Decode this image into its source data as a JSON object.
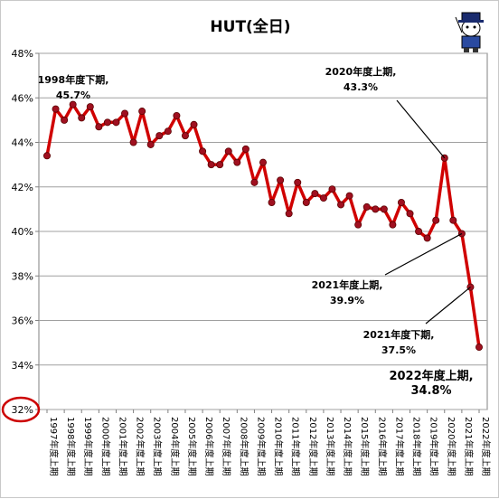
{
  "chart_data": {
    "type": "line",
    "title": "HUT(全日)",
    "y_ticks": [
      "48%",
      "46%",
      "44%",
      "42%",
      "40%",
      "38%",
      "36%",
      "34%",
      "32%"
    ],
    "ylim": [
      32,
      48
    ],
    "y_step": 2,
    "x_labels": [
      "1997年度上期",
      "1998年度上期",
      "1999年度上期",
      "2000年度上期",
      "2001年度上期",
      "2002年度上期",
      "2003年度上期",
      "2004年度上期",
      "2005年度上期",
      "2006年度上期",
      "2007年度上期",
      "2008年度上期",
      "2009年度上期",
      "2010年度上期",
      "2011年度上期",
      "2012年度上期",
      "2013年度上期",
      "2014年度上期",
      "2015年度上期",
      "2016年度上期",
      "2017年度上期",
      "2018年度上期",
      "2019年度上期",
      "2020年度上期",
      "2021年度上期",
      "2022年度上期"
    ],
    "values": [
      43.4,
      45.5,
      45.0,
      45.7,
      45.1,
      45.6,
      44.7,
      44.9,
      44.9,
      45.3,
      44.0,
      45.4,
      43.9,
      44.3,
      44.5,
      45.2,
      44.3,
      44.8,
      43.6,
      43.0,
      43.0,
      43.6,
      43.1,
      43.7,
      42.2,
      43.1,
      41.3,
      42.3,
      40.8,
      42.2,
      41.3,
      41.7,
      41.5,
      41.9,
      41.2,
      41.6,
      40.3,
      41.1,
      41.0,
      41.0,
      40.3,
      41.3,
      40.8,
      40.0,
      39.7,
      40.5,
      43.3,
      40.5,
      39.9,
      37.5,
      34.8
    ],
    "grid": true,
    "line_color": "#d00000",
    "marker_color": "#a01020",
    "highlight_color": "#cc0000",
    "annotations": [
      {
        "index": 3,
        "line1": "1998年度下期,",
        "line2": "45.7%",
        "style": "normal"
      },
      {
        "index": 46,
        "line1": "2020年度上期,",
        "line2": "43.3%",
        "style": "normal"
      },
      {
        "index": 48,
        "line1": "2021年度上期,",
        "line2": "39.9%",
        "style": "normal"
      },
      {
        "index": 49,
        "line1": "2021年度下期,",
        "line2": "37.5%",
        "style": "normal"
      },
      {
        "index": 50,
        "line1": "2022年度上期,",
        "line2": "34.8%",
        "style": "big"
      }
    ]
  }
}
